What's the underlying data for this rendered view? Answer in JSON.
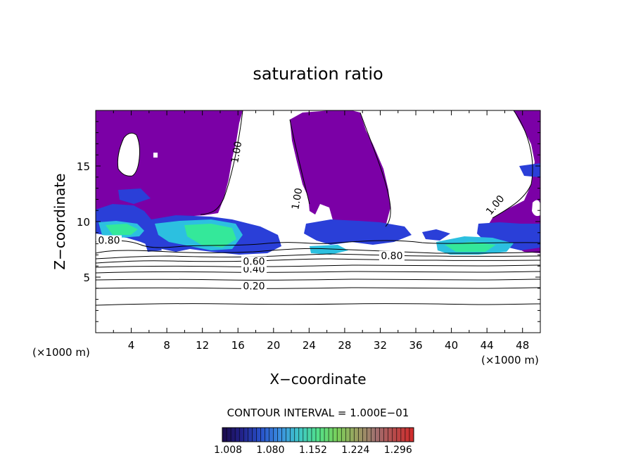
{
  "chart_data": {
    "type": "heatmap",
    "title": "saturation ratio",
    "xlabel": "X−coordinate",
    "ylabel": "Z−coordinate",
    "x_unit_left": "(×1000 m)",
    "x_unit_right": "(×1000 m)",
    "xlim": [
      0,
      50
    ],
    "ylim": [
      0,
      20
    ],
    "x_ticks": [
      "4",
      "8",
      "12",
      "16",
      "20",
      "24",
      "28",
      "32",
      "36",
      "40",
      "44",
      "48"
    ],
    "y_ticks": [
      "5",
      "10",
      "15"
    ],
    "contour_interval_text": "CONTOUR INTERVAL = 1.000E−01",
    "contour_labels": [
      {
        "text": "0.20",
        "x": 17.8,
        "z": 3.9
      },
      {
        "text": "0.40",
        "x": 17.8,
        "z": 5.4
      },
      {
        "text": "0.60",
        "x": 17.8,
        "z": 6.1
      },
      {
        "text": "0.80",
        "x": 33.3,
        "z": 6.6
      },
      {
        "text": "1.00",
        "x": 16.2,
        "z": 16.2
      },
      {
        "text": "1.00",
        "x": 23.0,
        "z": 12.0
      },
      {
        "text": "1.00",
        "x": 45.2,
        "z": 11.3
      },
      {
        "text": "0.80",
        "x": 1.5,
        "z": 8.0
      }
    ],
    "colorbar": {
      "min": 1.008,
      "max": 1.332,
      "tick_labels": [
        "1.008",
        "1.080",
        "1.152",
        "1.224",
        "1.296"
      ],
      "colors": [
        "#1a0a4a",
        "#22228a",
        "#2850c8",
        "#3a8ee0",
        "#3ec6c8",
        "#52e08a",
        "#7ad05a",
        "#9aa060",
        "#a07070",
        "#b84a4a",
        "#d22a2a"
      ]
    },
    "fill_colors": {
      "unsaturated_above_1": "#7b00a6",
      "blue": "#2a3fd8",
      "cyan": "#2cc0e0",
      "green": "#34e89a"
    }
  }
}
